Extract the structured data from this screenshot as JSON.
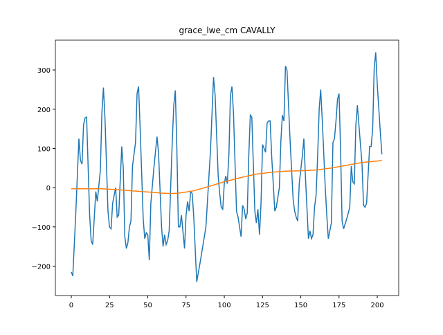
{
  "chart_data": {
    "type": "line",
    "title": "grace_lwe_cm CAVALLY",
    "xlim": [
      -10.4,
      214
    ],
    "xticks": [
      0,
      25,
      50,
      75,
      100,
      125,
      150,
      175,
      200
    ],
    "ylim": [
      -275,
      376
    ],
    "yticks": [
      {
        "value": -200,
        "label": "−200"
      },
      {
        "value": -100,
        "label": "−100"
      },
      0,
      100,
      200,
      300
    ],
    "series": [
      {
        "color": "#1f77b4",
        "x": [
          0,
          1,
          3,
          5,
          6,
          7,
          8,
          9,
          10,
          12,
          13,
          14,
          16,
          17,
          19,
          20,
          21,
          22,
          24,
          25,
          26,
          27,
          29,
          30,
          31,
          33,
          34,
          35,
          36,
          37,
          38,
          39,
          40,
          42,
          43,
          44,
          45,
          47,
          48,
          49,
          50,
          51,
          52,
          54,
          56,
          57,
          59,
          60,
          61,
          62,
          63,
          64,
          66,
          67,
          68,
          69,
          70,
          71,
          72,
          74,
          75,
          76,
          77,
          78,
          79,
          80,
          82,
          84,
          88,
          91,
          93,
          94,
          96,
          97,
          98,
          99,
          100,
          101,
          102,
          103,
          104,
          105,
          106,
          108,
          109,
          111,
          112,
          113,
          114,
          115,
          116,
          117,
          118,
          120,
          121,
          122,
          123,
          124,
          125,
          126,
          127,
          128,
          129,
          130,
          131,
          133,
          134,
          136,
          137,
          138,
          139,
          140,
          141,
          143,
          145,
          146,
          147,
          148,
          149,
          151,
          152,
          153,
          155,
          156,
          157,
          158,
          159,
          160,
          161,
          162,
          163,
          164,
          166,
          167,
          168,
          169,
          170,
          171,
          172,
          173,
          174,
          175,
          176,
          177,
          178,
          180,
          182,
          183,
          184,
          185,
          186,
          187,
          188,
          190,
          191,
          192,
          193,
          195,
          196,
          197,
          198,
          199,
          200,
          202,
          203
        ],
        "values": [
          -215,
          -225,
          -60,
          125,
          70,
          60,
          160,
          178,
          180,
          -70,
          -135,
          -145,
          -10,
          -35,
          45,
          190,
          255,
          180,
          -60,
          -100,
          -105,
          -40,
          0,
          -75,
          -70,
          105,
          50,
          -125,
          -155,
          -140,
          -100,
          -85,
          55,
          115,
          240,
          258,
          150,
          -80,
          -130,
          -115,
          -120,
          -185,
          -40,
          50,
          130,
          90,
          -100,
          -150,
          -120,
          -145,
          -135,
          -110,
          120,
          210,
          248,
          100,
          -100,
          -100,
          -70,
          -155,
          -70,
          -35,
          -60,
          -10,
          -15,
          -70,
          -240,
          -195,
          -100,
          95,
          282,
          235,
          30,
          -15,
          -50,
          -55,
          10,
          30,
          10,
          85,
          235,
          258,
          190,
          -60,
          -75,
          -125,
          -45,
          -55,
          -80,
          -65,
          80,
          185,
          180,
          -60,
          -90,
          -55,
          -120,
          -40,
          110,
          100,
          90,
          165,
          170,
          170,
          80,
          -60,
          -50,
          0,
          120,
          185,
          170,
          310,
          300,
          120,
          -30,
          -60,
          -75,
          -85,
          10,
          80,
          125,
          30,
          -130,
          -110,
          -130,
          -120,
          -50,
          -20,
          80,
          200,
          250,
          175,
          0,
          -70,
          -130,
          -110,
          -90,
          115,
          125,
          170,
          225,
          240,
          100,
          -85,
          -105,
          -80,
          -50,
          55,
          15,
          10,
          160,
          210,
          160,
          60,
          -45,
          -50,
          -40,
          105,
          105,
          150,
          305,
          345,
          260,
          140,
          85
        ]
      },
      {
        "color": "#ff7f0e",
        "x": [
          0,
          10,
          20,
          30,
          40,
          50,
          60,
          65,
          70,
          80,
          90,
          100,
          110,
          120,
          130,
          140,
          150,
          160,
          170,
          180,
          190,
          200,
          203
        ],
        "values": [
          -3,
          -3,
          -3,
          -5,
          -8,
          -11,
          -14,
          -15,
          -14,
          -8,
          3,
          15,
          25,
          34,
          39,
          42,
          43,
          45,
          50,
          57,
          64,
          68,
          69
        ]
      }
    ]
  }
}
